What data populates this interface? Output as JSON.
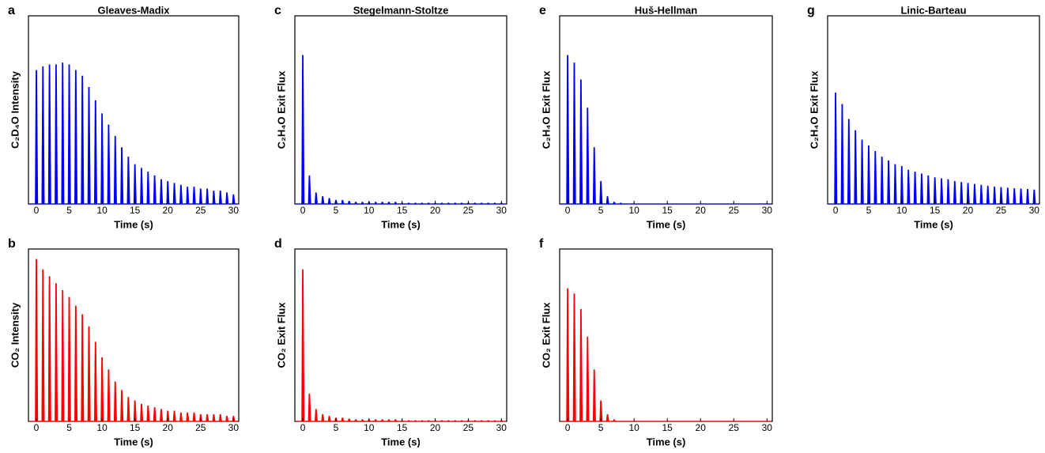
{
  "chart_data": [
    {
      "type": "pulse",
      "panel": "a",
      "title": "Gleaves-Madix",
      "x_label": "Time (s)",
      "y_label": "C₂D₄O Intensity",
      "color": "#0000ff",
      "x": [
        0,
        1,
        2,
        3,
        4,
        5,
        6,
        7,
        8,
        9,
        10,
        11,
        12,
        13,
        14,
        15,
        16,
        17,
        18,
        19,
        20,
        21,
        22,
        23,
        24,
        25,
        26,
        27,
        28,
        29,
        30
      ],
      "values": [
        0.71,
        0.73,
        0.74,
        0.74,
        0.75,
        0.74,
        0.71,
        0.68,
        0.62,
        0.55,
        0.48,
        0.42,
        0.36,
        0.3,
        0.25,
        0.21,
        0.19,
        0.17,
        0.15,
        0.13,
        0.12,
        0.11,
        0.1,
        0.09,
        0.09,
        0.08,
        0.08,
        0.07,
        0.07,
        0.06,
        0.05
      ],
      "xlim": [
        -1.2,
        30.8
      ],
      "xticks": [
        0,
        5,
        10,
        15,
        20,
        25,
        30
      ],
      "ylim": [
        0,
        1
      ]
    },
    {
      "type": "pulse",
      "panel": "b",
      "x_label": "Time (s)",
      "y_label": "CO₂ Intensity",
      "color": "#ff0000",
      "x": [
        0,
        1,
        2,
        3,
        4,
        5,
        6,
        7,
        8,
        9,
        10,
        11,
        12,
        13,
        14,
        15,
        16,
        17,
        18,
        19,
        20,
        21,
        22,
        23,
        24,
        25,
        26,
        27,
        28,
        29,
        30
      ],
      "values": [
        0.94,
        0.88,
        0.84,
        0.8,
        0.76,
        0.72,
        0.67,
        0.62,
        0.55,
        0.46,
        0.37,
        0.3,
        0.23,
        0.18,
        0.14,
        0.12,
        0.1,
        0.09,
        0.08,
        0.07,
        0.06,
        0.06,
        0.05,
        0.05,
        0.05,
        0.04,
        0.04,
        0.04,
        0.04,
        0.03,
        0.03
      ],
      "xlim": [
        -1.2,
        30.8
      ],
      "xticks": [
        0,
        5,
        10,
        15,
        20,
        25,
        30
      ],
      "ylim": [
        0,
        1
      ]
    },
    {
      "type": "pulse",
      "panel": "c",
      "title": "Stegelmann-Stoltze",
      "x_label": "Time (s)",
      "y_label": "C₂H₄O Exit Flux",
      "color": "#0000ff",
      "x": [
        0,
        1,
        2,
        3,
        4,
        5,
        6,
        7,
        8,
        9,
        10,
        11,
        12,
        13,
        14,
        15,
        16,
        17,
        18,
        19,
        20,
        21,
        22,
        23,
        24,
        25,
        26,
        27,
        28,
        29,
        30
      ],
      "values": [
        0.79,
        0.15,
        0.06,
        0.04,
        0.03,
        0.02,
        0.02,
        0.015,
        0.01,
        0.01,
        0.01,
        0.01,
        0.01,
        0.01,
        0.01,
        0.005,
        0.005,
        0.005,
        0.005,
        0.005,
        0.005,
        0.005,
        0.005,
        0.005,
        0.005,
        0.005,
        0.005,
        0.005,
        0.005,
        0.005,
        0.005
      ],
      "xlim": [
        -1.2,
        30.8
      ],
      "xticks": [
        0,
        5,
        10,
        15,
        20,
        25,
        30
      ],
      "ylim": [
        0,
        1
      ]
    },
    {
      "type": "pulse",
      "panel": "d",
      "x_label": "Time (s)",
      "y_label": "CO₂ Exit Flux",
      "color": "#ff0000",
      "x": [
        0,
        1,
        2,
        3,
        4,
        5,
        6,
        7,
        8,
        9,
        10,
        11,
        12,
        13,
        14,
        15,
        16,
        17,
        18,
        19,
        20,
        21,
        22,
        23,
        24,
        25,
        26,
        27,
        28,
        29,
        30
      ],
      "values": [
        0.88,
        0.16,
        0.07,
        0.04,
        0.03,
        0.02,
        0.02,
        0.015,
        0.01,
        0.01,
        0.01,
        0.01,
        0.01,
        0.01,
        0.01,
        0.005,
        0.005,
        0.005,
        0.005,
        0.005,
        0.005,
        0.005,
        0.005,
        0.005,
        0.005,
        0.005,
        0.005,
        0.005,
        0.005,
        0.005,
        0.005
      ],
      "xlim": [
        -1.2,
        30.8
      ],
      "xticks": [
        0,
        5,
        10,
        15,
        20,
        25,
        30
      ],
      "ylim": [
        0,
        1
      ]
    },
    {
      "type": "pulse",
      "panel": "e",
      "title": "Huš-Hellman",
      "x_label": "Time (s)",
      "y_label": "C₂H₄O Exit Flux",
      "color": "#0000ff",
      "x": [
        0,
        1,
        2,
        3,
        4,
        5,
        6,
        7,
        8,
        9,
        10,
        11,
        12,
        13,
        14,
        15,
        16,
        17,
        18,
        19,
        20,
        21,
        22,
        23,
        24,
        25,
        26,
        27,
        28,
        29,
        30
      ],
      "values": [
        0.79,
        0.75,
        0.66,
        0.51,
        0.3,
        0.12,
        0.04,
        0.01,
        0.005,
        0,
        0,
        0,
        0,
        0,
        0,
        0,
        0,
        0,
        0,
        0,
        0,
        0,
        0,
        0,
        0,
        0,
        0,
        0,
        0,
        0,
        0
      ],
      "xlim": [
        -1.2,
        30.8
      ],
      "xticks": [
        0,
        5,
        10,
        15,
        20,
        25,
        30
      ],
      "ylim": [
        0,
        1
      ]
    },
    {
      "type": "pulse",
      "panel": "f",
      "x_label": "Time (s)",
      "y_label": "CO₂ Exit Flux",
      "color": "#ff0000",
      "x": [
        0,
        1,
        2,
        3,
        4,
        5,
        6,
        7,
        8,
        9,
        10,
        11,
        12,
        13,
        14,
        15,
        16,
        17,
        18,
        19,
        20,
        21,
        22,
        23,
        24,
        25,
        26,
        27,
        28,
        29,
        30
      ],
      "values": [
        0.77,
        0.74,
        0.65,
        0.49,
        0.3,
        0.12,
        0.04,
        0.01,
        0,
        0,
        0,
        0,
        0,
        0,
        0,
        0,
        0,
        0,
        0,
        0,
        0,
        0,
        0,
        0,
        0,
        0,
        0,
        0,
        0,
        0,
        0
      ],
      "xlim": [
        -1.2,
        30.8
      ],
      "xticks": [
        0,
        5,
        10,
        15,
        20,
        25,
        30
      ],
      "ylim": [
        0,
        1
      ]
    },
    {
      "type": "pulse",
      "panel": "g",
      "title": "Linic-Barteau",
      "x_label": "Time (s)",
      "y_label": "C₂H₄O Exit Flux",
      "color": "#0000ff",
      "x": [
        0,
        1,
        2,
        3,
        4,
        5,
        6,
        7,
        8,
        9,
        10,
        11,
        12,
        13,
        14,
        15,
        16,
        17,
        18,
        19,
        20,
        21,
        22,
        23,
        24,
        25,
        26,
        27,
        28,
        29,
        30
      ],
      "values": [
        0.59,
        0.53,
        0.45,
        0.39,
        0.34,
        0.31,
        0.28,
        0.25,
        0.23,
        0.21,
        0.2,
        0.18,
        0.17,
        0.16,
        0.15,
        0.14,
        0.135,
        0.13,
        0.12,
        0.115,
        0.11,
        0.105,
        0.1,
        0.095,
        0.09,
        0.088,
        0.085,
        0.082,
        0.08,
        0.078,
        0.075
      ],
      "xlim": [
        -1.2,
        30.8
      ],
      "xticks": [
        0,
        5,
        10,
        15,
        20,
        25,
        30
      ],
      "ylim": [
        0,
        1
      ]
    }
  ]
}
